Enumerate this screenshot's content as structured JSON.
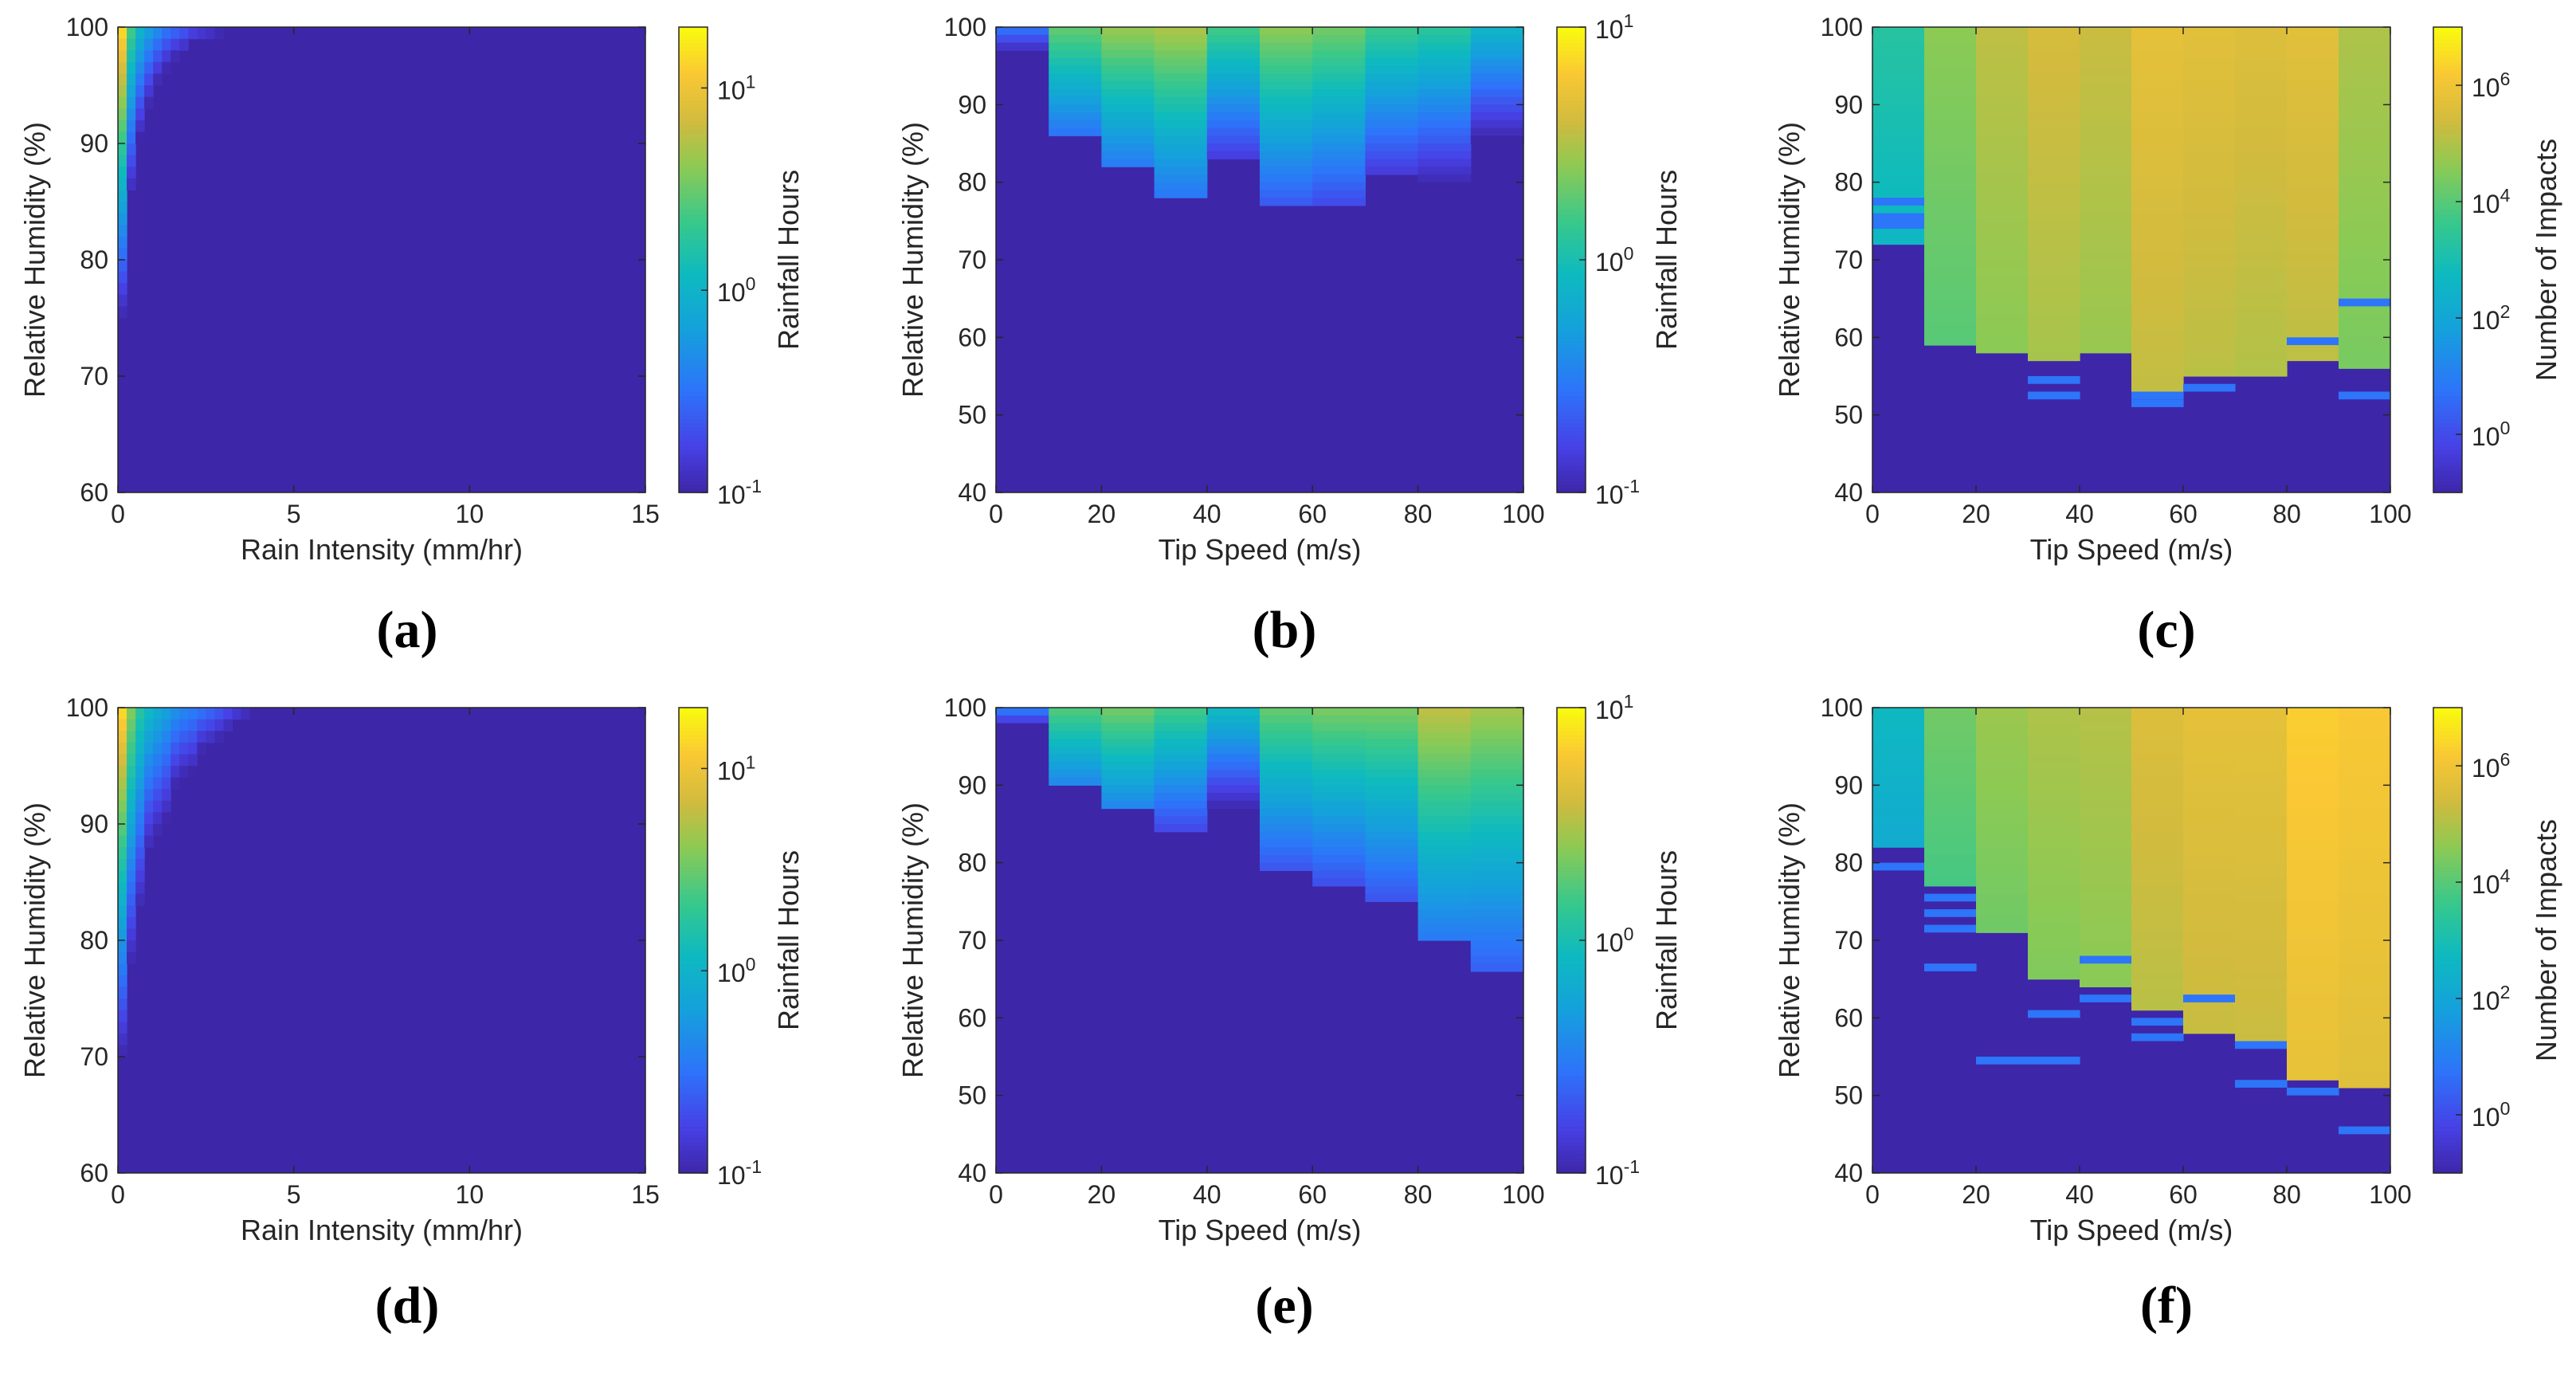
{
  "colors": {
    "viridis_low": "#3d26a8",
    "viridis_mid": "#13b6c9",
    "viridis_high": "#f9fb0e",
    "axis": "#262626",
    "background": "#ffffff"
  },
  "chart_data": [
    {
      "id": "a",
      "panel_label": "(a)",
      "type": "heatmap",
      "xlabel": "Rain Intensity (mm/hr)",
      "ylabel": "Relative Humidity (%)",
      "xlim": [
        0,
        15
      ],
      "ylim": [
        60,
        100
      ],
      "xticks": [
        0,
        5,
        10,
        15
      ],
      "xtick_labels": [
        "0",
        "5",
        "10",
        "15"
      ],
      "yticks": [
        60,
        70,
        80,
        90,
        100
      ],
      "ytick_labels": [
        "60",
        "70",
        "80",
        "90",
        "100"
      ],
      "x_bin_width": 0.25,
      "y_bin_height": 1,
      "colorbar": {
        "label": "Rainfall Hours",
        "scale": "log",
        "cmin": 0.1,
        "cmax": 20,
        "ticks": [
          0.1,
          1,
          10
        ],
        "tick_bases": [
          "10",
          "10",
          "10"
        ],
        "tick_exponents": [
          "-1",
          "0",
          "1"
        ]
      },
      "columns": [
        {
          "x": 0.125,
          "top": 100,
          "bottom": 66,
          "peak": 15,
          "decay": 5
        },
        {
          "x": 0.375,
          "top": 100,
          "bottom": 82,
          "peak": 2.5,
          "decay": 4.5
        },
        {
          "x": 0.625,
          "top": 100,
          "bottom": 85,
          "peak": 1.1,
          "decay": 4
        },
        {
          "x": 0.875,
          "top": 100,
          "bottom": 88,
          "peak": 0.7,
          "decay": 3.5
        },
        {
          "x": 1.125,
          "top": 100,
          "bottom": 90,
          "peak": 0.5,
          "decay": 3
        },
        {
          "x": 1.375,
          "top": 100,
          "bottom": 92,
          "peak": 0.35,
          "decay": 3
        },
        {
          "x": 1.625,
          "top": 100,
          "bottom": 94,
          "peak": 0.3,
          "decay": 2.5
        },
        {
          "x": 1.875,
          "top": 100,
          "bottom": 95,
          "peak": 0.25,
          "decay": 2.5
        },
        {
          "x": 2.125,
          "top": 100,
          "bottom": 96,
          "peak": 0.2,
          "decay": 2
        },
        {
          "x": 2.375,
          "top": 100,
          "bottom": 97,
          "peak": 0.18,
          "decay": 2
        },
        {
          "x": 2.625,
          "top": 100,
          "bottom": 98,
          "peak": 0.16,
          "decay": 2
        },
        {
          "x": 2.875,
          "top": 100,
          "bottom": 98.5,
          "peak": 0.14,
          "decay": 2
        }
      ]
    },
    {
      "id": "b",
      "panel_label": "(b)",
      "type": "heatmap",
      "xlabel": "Tip Speed (m/s)",
      "ylabel": "Relative Humidity (%)",
      "xlim": [
        0,
        100
      ],
      "ylim": [
        40,
        100
      ],
      "xticks": [
        0,
        20,
        40,
        60,
        80,
        100
      ],
      "xtick_labels": [
        "0",
        "20",
        "40",
        "60",
        "80",
        "100"
      ],
      "yticks": [
        40,
        50,
        60,
        70,
        80,
        90,
        100
      ],
      "ytick_labels": [
        "40",
        "50",
        "60",
        "70",
        "80",
        "90",
        "100"
      ],
      "x_bin_width": 10,
      "y_bin_height": 1,
      "colorbar": {
        "label": "Rainfall Hours",
        "scale": "log",
        "cmin": 0.1,
        "cmax": 10,
        "ticks": [
          0.1,
          1,
          10
        ],
        "tick_bases": [
          "10",
          "10",
          "10"
        ],
        "tick_exponents": [
          "-1",
          "0",
          "1"
        ]
      },
      "columns": [
        {
          "x": 5,
          "top": 100,
          "bottom": 95,
          "peak": 0.3,
          "decay": 3
        },
        {
          "x": 15,
          "top": 100,
          "bottom": 86,
          "peak": 2.0,
          "decay": 7
        },
        {
          "x": 25,
          "top": 100,
          "bottom": 82,
          "peak": 2.8,
          "decay": 8
        },
        {
          "x": 35,
          "top": 100,
          "bottom": 78,
          "peak": 3.2,
          "decay": 9
        },
        {
          "x": 45,
          "top": 100,
          "bottom": 83,
          "peak": 1.6,
          "decay": 7
        },
        {
          "x": 55,
          "top": 100,
          "bottom": 77,
          "peak": 2.6,
          "decay": 9
        },
        {
          "x": 65,
          "top": 100,
          "bottom": 77,
          "peak": 2.2,
          "decay": 9
        },
        {
          "x": 75,
          "top": 100,
          "bottom": 81,
          "peak": 1.5,
          "decay": 8
        },
        {
          "x": 85,
          "top": 100,
          "bottom": 79,
          "peak": 1.3,
          "decay": 8
        },
        {
          "x": 95,
          "top": 100,
          "bottom": 82,
          "peak": 0.8,
          "decay": 7
        }
      ]
    },
    {
      "id": "c",
      "panel_label": "(c)",
      "type": "heatmap",
      "xlabel": "Tip Speed (m/s)",
      "ylabel": "Relative Humidity (%)",
      "xlim": [
        0,
        100
      ],
      "ylim": [
        40,
        100
      ],
      "xticks": [
        0,
        20,
        40,
        60,
        80,
        100
      ],
      "xtick_labels": [
        "0",
        "20",
        "40",
        "60",
        "80",
        "100"
      ],
      "yticks": [
        40,
        50,
        60,
        70,
        80,
        90,
        100
      ],
      "ytick_labels": [
        "40",
        "50",
        "60",
        "70",
        "80",
        "90",
        "100"
      ],
      "x_bin_width": 10,
      "y_bin_height": 1,
      "colorbar": {
        "label": "Number of Impacts",
        "scale": "log",
        "cmin": 0.1,
        "cmax": 10000000,
        "ticks": [
          1,
          100,
          10000,
          1000000
        ],
        "tick_bases": [
          "10",
          "10",
          "10",
          "10"
        ],
        "tick_exponents": [
          "0",
          "2",
          "4",
          "6"
        ]
      },
      "columns": [
        {
          "x": 5,
          "top": 100,
          "bottom": 72,
          "peak": 2000,
          "decay": 18,
          "isolated": [
            77,
            75,
            74
          ]
        },
        {
          "x": 15,
          "top": 100,
          "bottom": 59,
          "peak": 40000,
          "decay": 30
        },
        {
          "x": 25,
          "top": 100,
          "bottom": 58,
          "peak": 150000,
          "decay": 30
        },
        {
          "x": 35,
          "top": 100,
          "bottom": 57,
          "peak": 300000,
          "decay": 32,
          "isolated": [
            54,
            52
          ]
        },
        {
          "x": 45,
          "top": 100,
          "bottom": 58,
          "peak": 200000,
          "decay": 32
        },
        {
          "x": 55,
          "top": 100,
          "bottom": 53,
          "peak": 600000,
          "decay": 36,
          "isolated": [
            52,
            51
          ]
        },
        {
          "x": 65,
          "top": 100,
          "bottom": 55,
          "peak": 500000,
          "decay": 34,
          "isolated": [
            53
          ]
        },
        {
          "x": 75,
          "top": 100,
          "bottom": 55,
          "peak": 400000,
          "decay": 34
        },
        {
          "x": 85,
          "top": 100,
          "bottom": 57,
          "peak": 500000,
          "decay": 34,
          "isolated": [
            59
          ]
        },
        {
          "x": 95,
          "top": 100,
          "bottom": 56,
          "peak": 100000,
          "decay": 30,
          "isolated": [
            64,
            52
          ]
        }
      ]
    },
    {
      "id": "d",
      "panel_label": "(d)",
      "type": "heatmap",
      "xlabel": "Rain Intensity (mm/hr)",
      "ylabel": "Relative Humidity (%)",
      "xlim": [
        0,
        15
      ],
      "ylim": [
        60,
        100
      ],
      "xticks": [
        0,
        5,
        10,
        15
      ],
      "xtick_labels": [
        "0",
        "5",
        "10",
        "15"
      ],
      "yticks": [
        60,
        70,
        80,
        90,
        100
      ],
      "ytick_labels": [
        "60",
        "70",
        "80",
        "90",
        "100"
      ],
      "x_bin_width": 0.25,
      "y_bin_height": 1,
      "colorbar": {
        "label": "Rainfall Hours",
        "scale": "log",
        "cmin": 0.1,
        "cmax": 20,
        "ticks": [
          0.1,
          1,
          10
        ],
        "tick_bases": [
          "10",
          "10",
          "10"
        ],
        "tick_exponents": [
          "-1",
          "0",
          "1"
        ]
      },
      "columns": [
        {
          "x": 0.125,
          "top": 100,
          "bottom": 62,
          "peak": 15,
          "decay": 6
        },
        {
          "x": 0.375,
          "top": 100,
          "bottom": 74,
          "peak": 4,
          "decay": 6
        },
        {
          "x": 0.625,
          "top": 100,
          "bottom": 81,
          "peak": 1.8,
          "decay": 6
        },
        {
          "x": 0.875,
          "top": 100,
          "bottom": 84,
          "peak": 1.2,
          "decay": 5
        },
        {
          "x": 1.125,
          "top": 100,
          "bottom": 86,
          "peak": 0.9,
          "decay": 5
        },
        {
          "x": 1.375,
          "top": 100,
          "bottom": 88,
          "peak": 0.7,
          "decay": 5
        },
        {
          "x": 1.625,
          "top": 100,
          "bottom": 89,
          "peak": 0.55,
          "decay": 4
        },
        {
          "x": 1.875,
          "top": 100,
          "bottom": 91,
          "peak": 0.45,
          "decay": 4
        },
        {
          "x": 2.125,
          "top": 100,
          "bottom": 92,
          "peak": 0.4,
          "decay": 4
        },
        {
          "x": 2.375,
          "top": 100,
          "bottom": 93,
          "peak": 0.35,
          "decay": 3
        },
        {
          "x": 2.625,
          "top": 100,
          "bottom": 94,
          "peak": 0.3,
          "decay": 3
        },
        {
          "x": 2.875,
          "top": 100,
          "bottom": 95,
          "peak": 0.25,
          "decay": 3
        },
        {
          "x": 3.125,
          "top": 100,
          "bottom": 96,
          "peak": 0.2,
          "decay": 3
        },
        {
          "x": 3.375,
          "top": 100,
          "bottom": 97,
          "peak": 0.18,
          "decay": 2
        },
        {
          "x": 3.625,
          "top": 100,
          "bottom": 98,
          "peak": 0.15,
          "decay": 2
        },
        {
          "x": 3.875,
          "top": 100,
          "bottom": 99,
          "peak": 0.13,
          "decay": 2
        }
      ]
    },
    {
      "id": "e",
      "panel_label": "(e)",
      "type": "heatmap",
      "xlabel": "Tip Speed (m/s)",
      "ylabel": "Relative Humidity (%)",
      "xlim": [
        0,
        100
      ],
      "ylim": [
        40,
        100
      ],
      "xticks": [
        0,
        20,
        40,
        60,
        80,
        100
      ],
      "xtick_labels": [
        "0",
        "20",
        "40",
        "60",
        "80",
        "100"
      ],
      "yticks": [
        40,
        50,
        60,
        70,
        80,
        90,
        100
      ],
      "ytick_labels": [
        "40",
        "50",
        "60",
        "70",
        "80",
        "90",
        "100"
      ],
      "x_bin_width": 10,
      "y_bin_height": 1,
      "colorbar": {
        "label": "Rainfall Hours",
        "scale": "log",
        "cmin": 0.1,
        "cmax": 10,
        "ticks": [
          0.1,
          1,
          10
        ],
        "tick_bases": [
          "10",
          "10",
          "10"
        ],
        "tick_exponents": [
          "-1",
          "0",
          "1"
        ]
      },
      "columns": [
        {
          "x": 5,
          "top": 100,
          "bottom": 97,
          "peak": 0.35,
          "decay": 2
        },
        {
          "x": 15,
          "top": 100,
          "bottom": 90,
          "peak": 1.8,
          "decay": 6
        },
        {
          "x": 25,
          "top": 100,
          "bottom": 87,
          "peak": 2.2,
          "decay": 7
        },
        {
          "x": 35,
          "top": 100,
          "bottom": 84,
          "peak": 1.6,
          "decay": 7
        },
        {
          "x": 45,
          "top": 100,
          "bottom": 85,
          "peak": 0.9,
          "decay": 6
        },
        {
          "x": 55,
          "top": 100,
          "bottom": 79,
          "peak": 2.0,
          "decay": 9
        },
        {
          "x": 65,
          "top": 100,
          "bottom": 77,
          "peak": 2.3,
          "decay": 9
        },
        {
          "x": 75,
          "top": 100,
          "bottom": 75,
          "peak": 2.3,
          "decay": 10
        },
        {
          "x": 85,
          "top": 100,
          "bottom": 70,
          "peak": 3.6,
          "decay": 12
        },
        {
          "x": 95,
          "top": 100,
          "bottom": 66,
          "peak": 3.0,
          "decay": 13
        }
      ]
    },
    {
      "id": "f",
      "panel_label": "(f)",
      "type": "heatmap",
      "xlabel": "Tip Speed (m/s)",
      "ylabel": "Relative Humidity (%)",
      "xlim": [
        0,
        100
      ],
      "ylim": [
        40,
        100
      ],
      "xticks": [
        0,
        20,
        40,
        60,
        80,
        100
      ],
      "xtick_labels": [
        "0",
        "20",
        "40",
        "60",
        "80",
        "100"
      ],
      "yticks": [
        40,
        50,
        60,
        70,
        80,
        90,
        100
      ],
      "ytick_labels": [
        "40",
        "50",
        "60",
        "70",
        "80",
        "90",
        "100"
      ],
      "x_bin_width": 10,
      "y_bin_height": 1,
      "colorbar": {
        "label": "Number of Impacts",
        "scale": "log",
        "cmin": 0.1,
        "cmax": 10000000,
        "ticks": [
          1,
          100,
          10000,
          1000000
        ],
        "tick_bases": [
          "10",
          "10",
          "10",
          "10"
        ],
        "tick_exponents": [
          "0",
          "2",
          "4",
          "6"
        ]
      },
      "columns": [
        {
          "x": 5,
          "top": 100,
          "bottom": 82,
          "peak": 500,
          "decay": 16,
          "isolated": [
            79
          ]
        },
        {
          "x": 15,
          "top": 100,
          "bottom": 77,
          "peak": 20000,
          "decay": 20,
          "isolated": [
            75,
            73,
            71,
            66
          ]
        },
        {
          "x": 25,
          "top": 100,
          "bottom": 71,
          "peak": 60000,
          "decay": 25,
          "isolated": [
            54
          ]
        },
        {
          "x": 35,
          "top": 100,
          "bottom": 65,
          "peak": 100000,
          "decay": 28,
          "isolated": [
            60,
            54
          ]
        },
        {
          "x": 45,
          "top": 100,
          "bottom": 64,
          "peak": 120000,
          "decay": 30,
          "isolated": [
            67,
            62
          ]
        },
        {
          "x": 55,
          "top": 100,
          "bottom": 61,
          "peak": 400000,
          "decay": 34,
          "isolated": [
            59,
            57
          ]
        },
        {
          "x": 65,
          "top": 100,
          "bottom": 58,
          "peak": 600000,
          "decay": 36,
          "isolated": [
            62
          ]
        },
        {
          "x": 75,
          "top": 100,
          "bottom": 57,
          "peak": 600000,
          "decay": 38,
          "isolated": [
            56,
            51
          ]
        },
        {
          "x": 85,
          "top": 100,
          "bottom": 52,
          "peak": 2000000,
          "decay": 42,
          "isolated": [
            50
          ]
        },
        {
          "x": 95,
          "top": 100,
          "bottom": 51,
          "peak": 1500000,
          "decay": 42,
          "isolated": [
            45
          ]
        }
      ]
    }
  ]
}
